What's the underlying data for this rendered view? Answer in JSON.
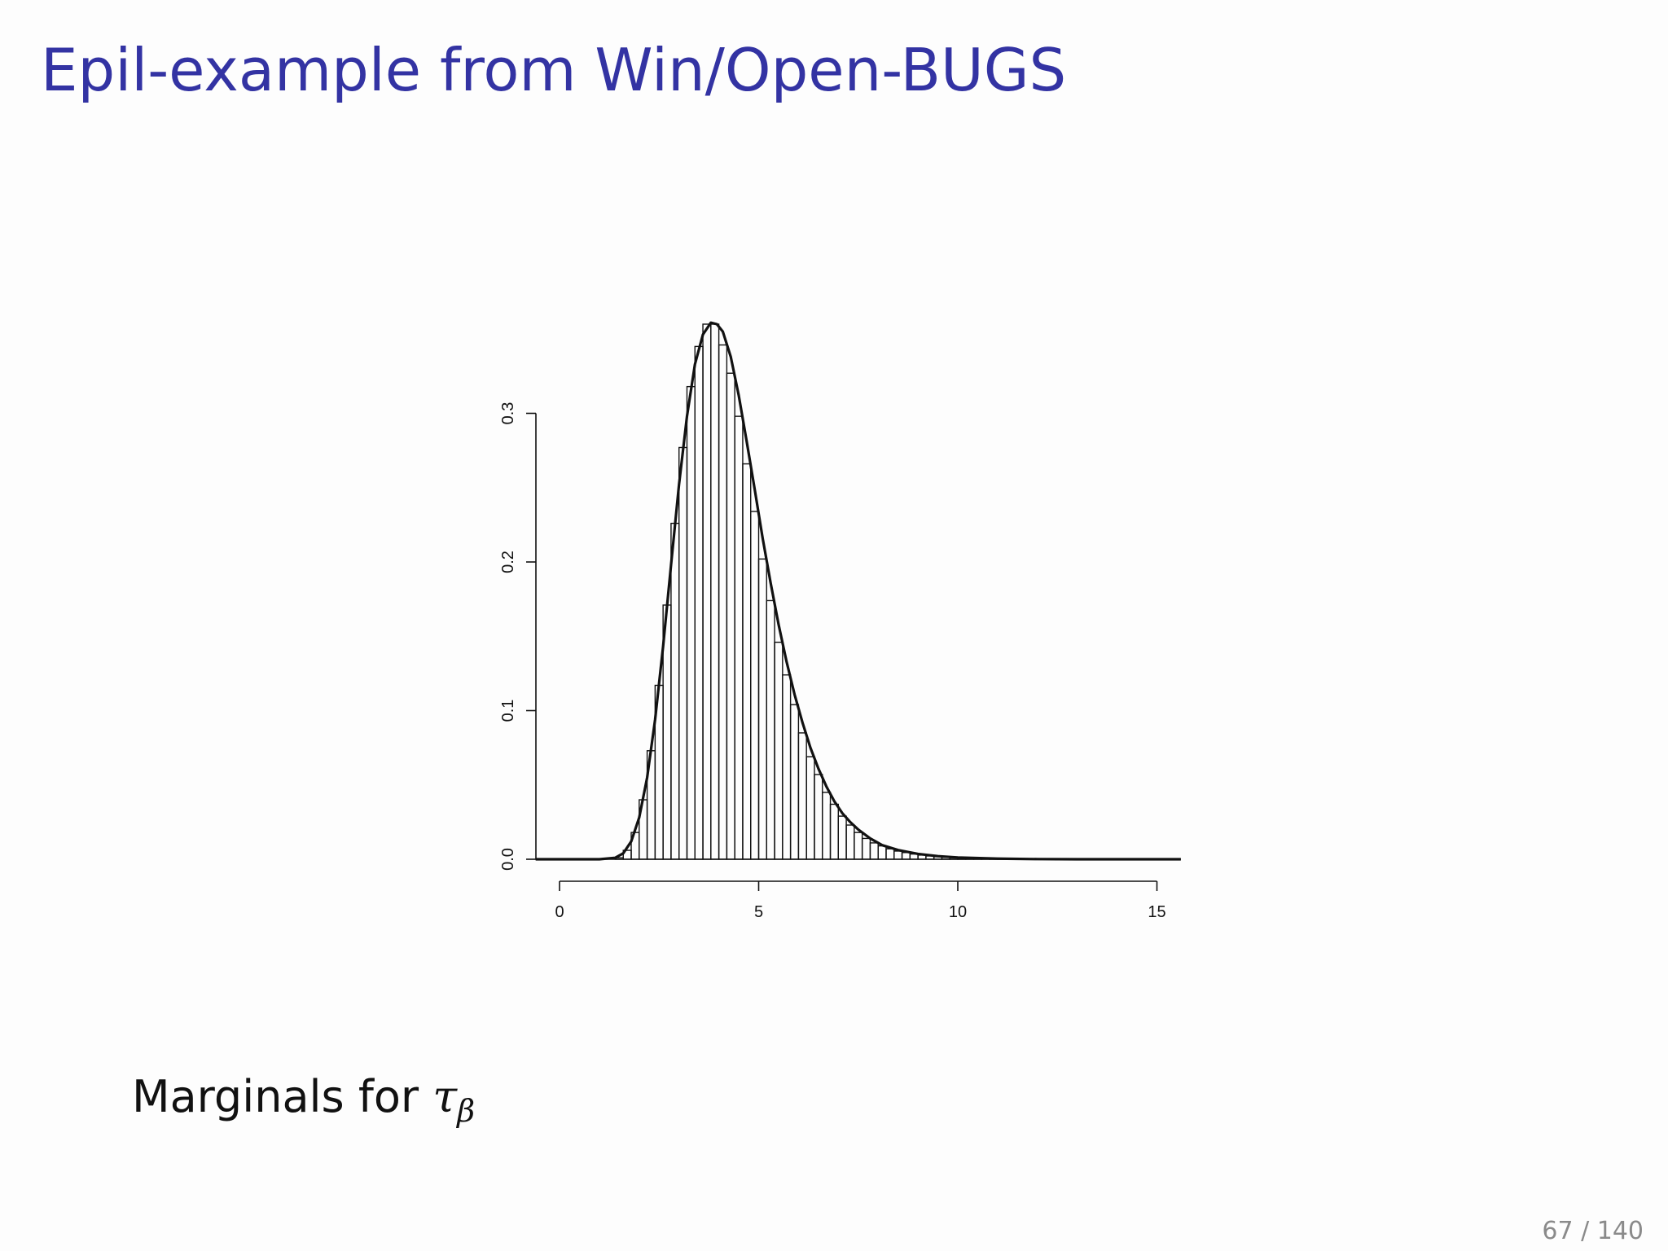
{
  "slide": {
    "title": "Epil-example from Win/Open-BUGS",
    "caption_prefix": "Marginals for ",
    "caption_symbol": "τ",
    "caption_subscript": "β",
    "page_number": "67 / 140"
  },
  "colors": {
    "title": "#3333a3",
    "ink": "#111111",
    "page_number": "#8a8a8a"
  },
  "chart_data": {
    "type": "histogram",
    "title": "",
    "xlabel": "",
    "ylabel": "",
    "xlim": [
      -0.6,
      15.6
    ],
    "ylim": [
      0,
      0.36
    ],
    "x_ticks": [
      "0",
      "5",
      "10",
      "15"
    ],
    "y_ticks": [
      "0.0",
      "0.1",
      "0.2",
      "0.3"
    ],
    "grid": false,
    "legend": "none",
    "bin_width": 0.2,
    "bins": [
      {
        "x0": 1.4,
        "y": 0.001
      },
      {
        "x0": 1.6,
        "y": 0.006
      },
      {
        "x0": 1.8,
        "y": 0.018
      },
      {
        "x0": 2.0,
        "y": 0.04
      },
      {
        "x0": 2.2,
        "y": 0.073
      },
      {
        "x0": 2.4,
        "y": 0.117
      },
      {
        "x0": 2.6,
        "y": 0.171
      },
      {
        "x0": 2.8,
        "y": 0.226
      },
      {
        "x0": 3.0,
        "y": 0.277
      },
      {
        "x0": 3.2,
        "y": 0.318
      },
      {
        "x0": 3.4,
        "y": 0.345
      },
      {
        "x0": 3.6,
        "y": 0.36
      },
      {
        "x0": 3.8,
        "y": 0.36
      },
      {
        "x0": 4.0,
        "y": 0.346
      },
      {
        "x0": 4.2,
        "y": 0.327
      },
      {
        "x0": 4.4,
        "y": 0.298
      },
      {
        "x0": 4.6,
        "y": 0.266
      },
      {
        "x0": 4.8,
        "y": 0.234
      },
      {
        "x0": 5.0,
        "y": 0.202
      },
      {
        "x0": 5.2,
        "y": 0.174
      },
      {
        "x0": 5.4,
        "y": 0.146
      },
      {
        "x0": 5.6,
        "y": 0.124
      },
      {
        "x0": 5.8,
        "y": 0.104
      },
      {
        "x0": 6.0,
        "y": 0.085
      },
      {
        "x0": 6.2,
        "y": 0.069
      },
      {
        "x0": 6.4,
        "y": 0.057
      },
      {
        "x0": 6.6,
        "y": 0.045
      },
      {
        "x0": 6.8,
        "y": 0.037
      },
      {
        "x0": 7.0,
        "y": 0.029
      },
      {
        "x0": 7.2,
        "y": 0.023
      },
      {
        "x0": 7.4,
        "y": 0.018
      },
      {
        "x0": 7.6,
        "y": 0.014
      },
      {
        "x0": 7.8,
        "y": 0.011
      },
      {
        "x0": 8.0,
        "y": 0.009
      },
      {
        "x0": 8.2,
        "y": 0.007
      },
      {
        "x0": 8.4,
        "y": 0.0055
      },
      {
        "x0": 8.6,
        "y": 0.0045
      },
      {
        "x0": 8.8,
        "y": 0.0035
      },
      {
        "x0": 9.0,
        "y": 0.0028
      },
      {
        "x0": 9.2,
        "y": 0.0022
      },
      {
        "x0": 9.4,
        "y": 0.0017
      },
      {
        "x0": 9.6,
        "y": 0.0013
      },
      {
        "x0": 9.8,
        "y": 0.001
      },
      {
        "x0": 10.0,
        "y": 0.0008
      },
      {
        "x0": 10.2,
        "y": 0.0006
      },
      {
        "x0": 10.4,
        "y": 0.0005
      },
      {
        "x0": 10.6,
        "y": 0.0004
      },
      {
        "x0": 10.8,
        "y": 0.0003
      },
      {
        "x0": 11.0,
        "y": 0.0002
      },
      {
        "x0": 11.2,
        "y": 0.0002
      },
      {
        "x0": 11.4,
        "y": 0.0001
      },
      {
        "x0": 11.6,
        "y": 0.0001
      }
    ],
    "density_curve": [
      {
        "x": -0.6,
        "y": 0.0
      },
      {
        "x": 1.0,
        "y": 0.0
      },
      {
        "x": 1.4,
        "y": 0.001
      },
      {
        "x": 1.6,
        "y": 0.004
      },
      {
        "x": 1.8,
        "y": 0.012
      },
      {
        "x": 2.0,
        "y": 0.028
      },
      {
        "x": 2.2,
        "y": 0.055
      },
      {
        "x": 2.4,
        "y": 0.094
      },
      {
        "x": 2.6,
        "y": 0.143
      },
      {
        "x": 2.8,
        "y": 0.198
      },
      {
        "x": 3.0,
        "y": 0.252
      },
      {
        "x": 3.2,
        "y": 0.298
      },
      {
        "x": 3.4,
        "y": 0.333
      },
      {
        "x": 3.6,
        "y": 0.353
      },
      {
        "x": 3.8,
        "y": 0.361
      },
      {
        "x": 3.95,
        "y": 0.36
      },
      {
        "x": 4.1,
        "y": 0.355
      },
      {
        "x": 4.3,
        "y": 0.338
      },
      {
        "x": 4.5,
        "y": 0.312
      },
      {
        "x": 4.7,
        "y": 0.281
      },
      {
        "x": 4.9,
        "y": 0.249
      },
      {
        "x": 5.1,
        "y": 0.216
      },
      {
        "x": 5.3,
        "y": 0.186
      },
      {
        "x": 5.5,
        "y": 0.158
      },
      {
        "x": 5.7,
        "y": 0.133
      },
      {
        "x": 5.9,
        "y": 0.111
      },
      {
        "x": 6.1,
        "y": 0.092
      },
      {
        "x": 6.3,
        "y": 0.075
      },
      {
        "x": 6.5,
        "y": 0.061
      },
      {
        "x": 6.7,
        "y": 0.049
      },
      {
        "x": 6.9,
        "y": 0.039
      },
      {
        "x": 7.1,
        "y": 0.031
      },
      {
        "x": 7.3,
        "y": 0.025
      },
      {
        "x": 7.5,
        "y": 0.02
      },
      {
        "x": 7.8,
        "y": 0.014
      },
      {
        "x": 8.1,
        "y": 0.0095
      },
      {
        "x": 8.5,
        "y": 0.0062
      },
      {
        "x": 9.0,
        "y": 0.0036
      },
      {
        "x": 9.5,
        "y": 0.0021
      },
      {
        "x": 10.0,
        "y": 0.0012
      },
      {
        "x": 11.0,
        "y": 0.0004
      },
      {
        "x": 12.0,
        "y": 0.0001
      },
      {
        "x": 13.0,
        "y": 0.0
      },
      {
        "x": 15.6,
        "y": 0.0
      }
    ]
  }
}
